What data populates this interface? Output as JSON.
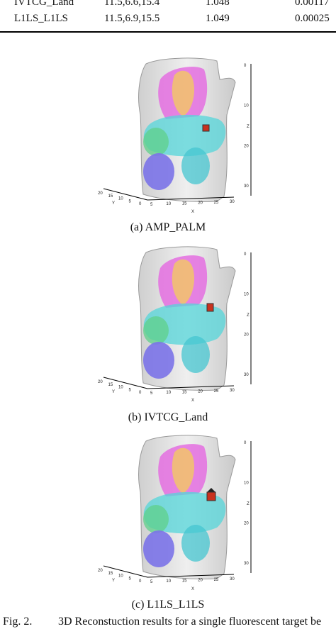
{
  "table": {
    "rows": [
      {
        "method": "IVTCG_Land",
        "position": "11.5,6.6,15.4",
        "ratio": "1.048",
        "error": "0.00117"
      },
      {
        "method": "L1LS_L1LS",
        "position": "11.5,6.9,15.5",
        "ratio": "1.049",
        "error": "0.00025"
      }
    ]
  },
  "figures": [
    {
      "caption": "(a) AMP_PALM",
      "axes": {
        "x_label": "X",
        "y_label": "Y",
        "z_label": "Z",
        "x_ticks": [
          "5",
          "10",
          "15",
          "20",
          "25",
          "30"
        ],
        "y_ticks": [
          "0",
          "5",
          "10",
          "15",
          "20"
        ],
        "z_ticks": [
          "0",
          "10",
          "20",
          "30"
        ]
      }
    },
    {
      "caption": "(b) IVTCG_Land",
      "axes": {
        "x_label": "X",
        "y_label": "Y",
        "z_label": "Z",
        "x_ticks": [
          "5",
          "10",
          "15",
          "20",
          "25",
          "30"
        ],
        "y_ticks": [
          "0",
          "5",
          "10",
          "15",
          "20"
        ],
        "z_ticks": [
          "0",
          "10",
          "20",
          "30"
        ]
      }
    },
    {
      "caption": "(c) L1LS_L1LS",
      "axes": {
        "x_label": "X",
        "y_label": "Y",
        "z_label": "Z",
        "x_ticks": [
          "5",
          "10",
          "15",
          "20",
          "25",
          "30"
        ],
        "y_ticks": [
          "0",
          "5",
          "10",
          "15",
          "20"
        ],
        "z_ticks": [
          "0",
          "10",
          "20",
          "30"
        ]
      }
    }
  ],
  "fig_caption": {
    "label": "Fig. 2.",
    "text": "3D Reconstuction results for a single fluorescent target be"
  },
  "colors": {
    "lung": "#e46fe0",
    "heart": "#f2c46a",
    "liver": "#54d6d9",
    "stomach": "#5fd08a",
    "kidney": "#7b73e8",
    "target": "#c8321e",
    "body": "#d9d9d9"
  }
}
